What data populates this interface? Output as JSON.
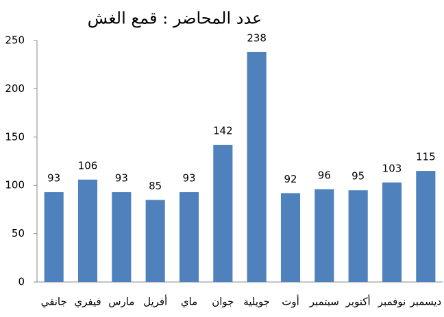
{
  "chart_data": {
    "type": "bar",
    "title": "عدد المحاضر : قمع الغش",
    "categories": [
      "جانفي",
      "فيفري",
      "مارس",
      "أفريل",
      "ماي",
      "جوان",
      "جويلية",
      "أوت",
      "سبتمبر",
      "أكتوبر",
      "نوفمبر",
      "ديسمبر"
    ],
    "values": [
      93,
      106,
      93,
      85,
      93,
      142,
      238,
      92,
      96,
      95,
      103,
      115
    ],
    "color": "#4f81bd",
    "ylim": [
      0,
      250
    ],
    "yticks": [
      0,
      50,
      100,
      150,
      200,
      250
    ],
    "grid": false
  }
}
